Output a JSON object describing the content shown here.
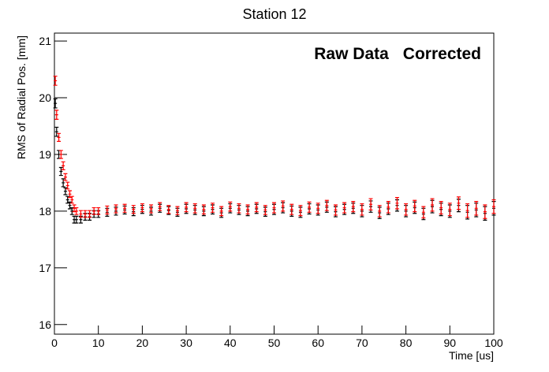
{
  "chart_data": {
    "type": "errorbar",
    "title": "Station 12",
    "x_label": "Time [us]",
    "y_label": "RMS of Radial Pos. [mm]",
    "x": [
      0.2,
      0.5,
      1,
      1.5,
      2,
      2.5,
      3,
      3.5,
      4,
      4.5,
      5,
      6,
      7,
      8,
      9,
      10,
      12,
      14,
      16,
      18,
      20,
      22,
      24,
      26,
      28,
      30,
      32,
      34,
      36,
      38,
      40,
      42,
      44,
      46,
      48,
      50,
      52,
      54,
      56,
      58,
      60,
      62,
      64,
      66,
      68,
      70,
      72,
      74,
      76,
      78,
      80,
      82,
      84,
      86,
      88,
      90,
      92,
      94,
      96,
      98,
      100
    ],
    "series": [
      {
        "name": "Raw Data",
        "color": "#000000",
        "values": [
          19.9,
          19.4,
          19.0,
          18.7,
          18.5,
          18.35,
          18.2,
          18.1,
          18.0,
          17.85,
          17.85,
          17.85,
          17.9,
          17.9,
          17.95,
          17.95,
          17.98,
          18.0,
          18.02,
          17.99,
          18.03,
          18.0,
          18.05,
          18.01,
          17.98,
          18.04,
          18.02,
          18.0,
          18.03,
          17.97,
          18.05,
          18.02,
          18.0,
          18.04,
          17.99,
          18.03,
          18.06,
          18.0,
          17.98,
          18.04,
          18.02,
          18.07,
          17.99,
          18.03,
          18.05,
          18.0,
          18.08,
          17.97,
          18.04,
          18.1,
          18.0,
          18.06,
          17.95,
          18.08,
          18.03,
          18.0,
          18.1,
          17.98,
          18.02,
          17.96,
          18.05
        ],
        "errors": [
          0.08,
          0.08,
          0.07,
          0.07,
          0.07,
          0.06,
          0.06,
          0.06,
          0.06,
          0.06,
          0.06,
          0.06,
          0.06,
          0.06,
          0.06,
          0.06,
          0.07,
          0.07,
          0.07,
          0.07,
          0.07,
          0.07,
          0.07,
          0.07,
          0.07,
          0.08,
          0.08,
          0.08,
          0.08,
          0.08,
          0.08,
          0.08,
          0.08,
          0.08,
          0.08,
          0.09,
          0.09,
          0.09,
          0.09,
          0.09,
          0.09,
          0.09,
          0.09,
          0.09,
          0.09,
          0.1,
          0.1,
          0.1,
          0.1,
          0.1,
          0.1,
          0.1,
          0.1,
          0.11,
          0.11,
          0.11,
          0.11,
          0.12,
          0.12,
          0.12,
          0.12
        ]
      },
      {
        "name": "Corrected",
        "color": "#ff0000",
        "values": [
          20.3,
          19.7,
          19.3,
          19.0,
          18.8,
          18.6,
          18.45,
          18.3,
          18.2,
          18.05,
          18.0,
          17.95,
          17.95,
          17.95,
          18.0,
          18.0,
          18.02,
          18.04,
          18.05,
          18.03,
          18.06,
          18.04,
          18.08,
          18.03,
          18.01,
          18.07,
          18.05,
          18.03,
          18.06,
          18.0,
          18.08,
          18.05,
          18.03,
          18.07,
          18.02,
          18.06,
          18.09,
          18.03,
          18.01,
          18.07,
          18.05,
          18.1,
          18.02,
          18.06,
          18.08,
          18.03,
          18.12,
          18.0,
          18.07,
          18.14,
          18.03,
          18.09,
          17.98,
          18.11,
          18.06,
          18.03,
          18.14,
          18.01,
          18.05,
          17.99,
          18.08
        ],
        "errors": [
          0.08,
          0.08,
          0.07,
          0.07,
          0.07,
          0.06,
          0.06,
          0.06,
          0.06,
          0.06,
          0.06,
          0.06,
          0.06,
          0.06,
          0.06,
          0.06,
          0.07,
          0.07,
          0.07,
          0.07,
          0.07,
          0.07,
          0.07,
          0.07,
          0.07,
          0.08,
          0.08,
          0.08,
          0.08,
          0.08,
          0.08,
          0.08,
          0.08,
          0.08,
          0.08,
          0.09,
          0.09,
          0.09,
          0.09,
          0.09,
          0.09,
          0.09,
          0.09,
          0.09,
          0.09,
          0.1,
          0.1,
          0.1,
          0.1,
          0.1,
          0.1,
          0.1,
          0.1,
          0.11,
          0.11,
          0.11,
          0.11,
          0.12,
          0.12,
          0.12,
          0.12
        ]
      }
    ],
    "xlim": [
      0,
      100
    ],
    "xticks": [
      0,
      10,
      20,
      30,
      40,
      50,
      60,
      70,
      80,
      90,
      100
    ],
    "ylim": [
      15.83,
      21.14
    ],
    "yticks": [
      16,
      17,
      18,
      19,
      20,
      21
    ],
    "legend": "top-right",
    "grid": false
  }
}
